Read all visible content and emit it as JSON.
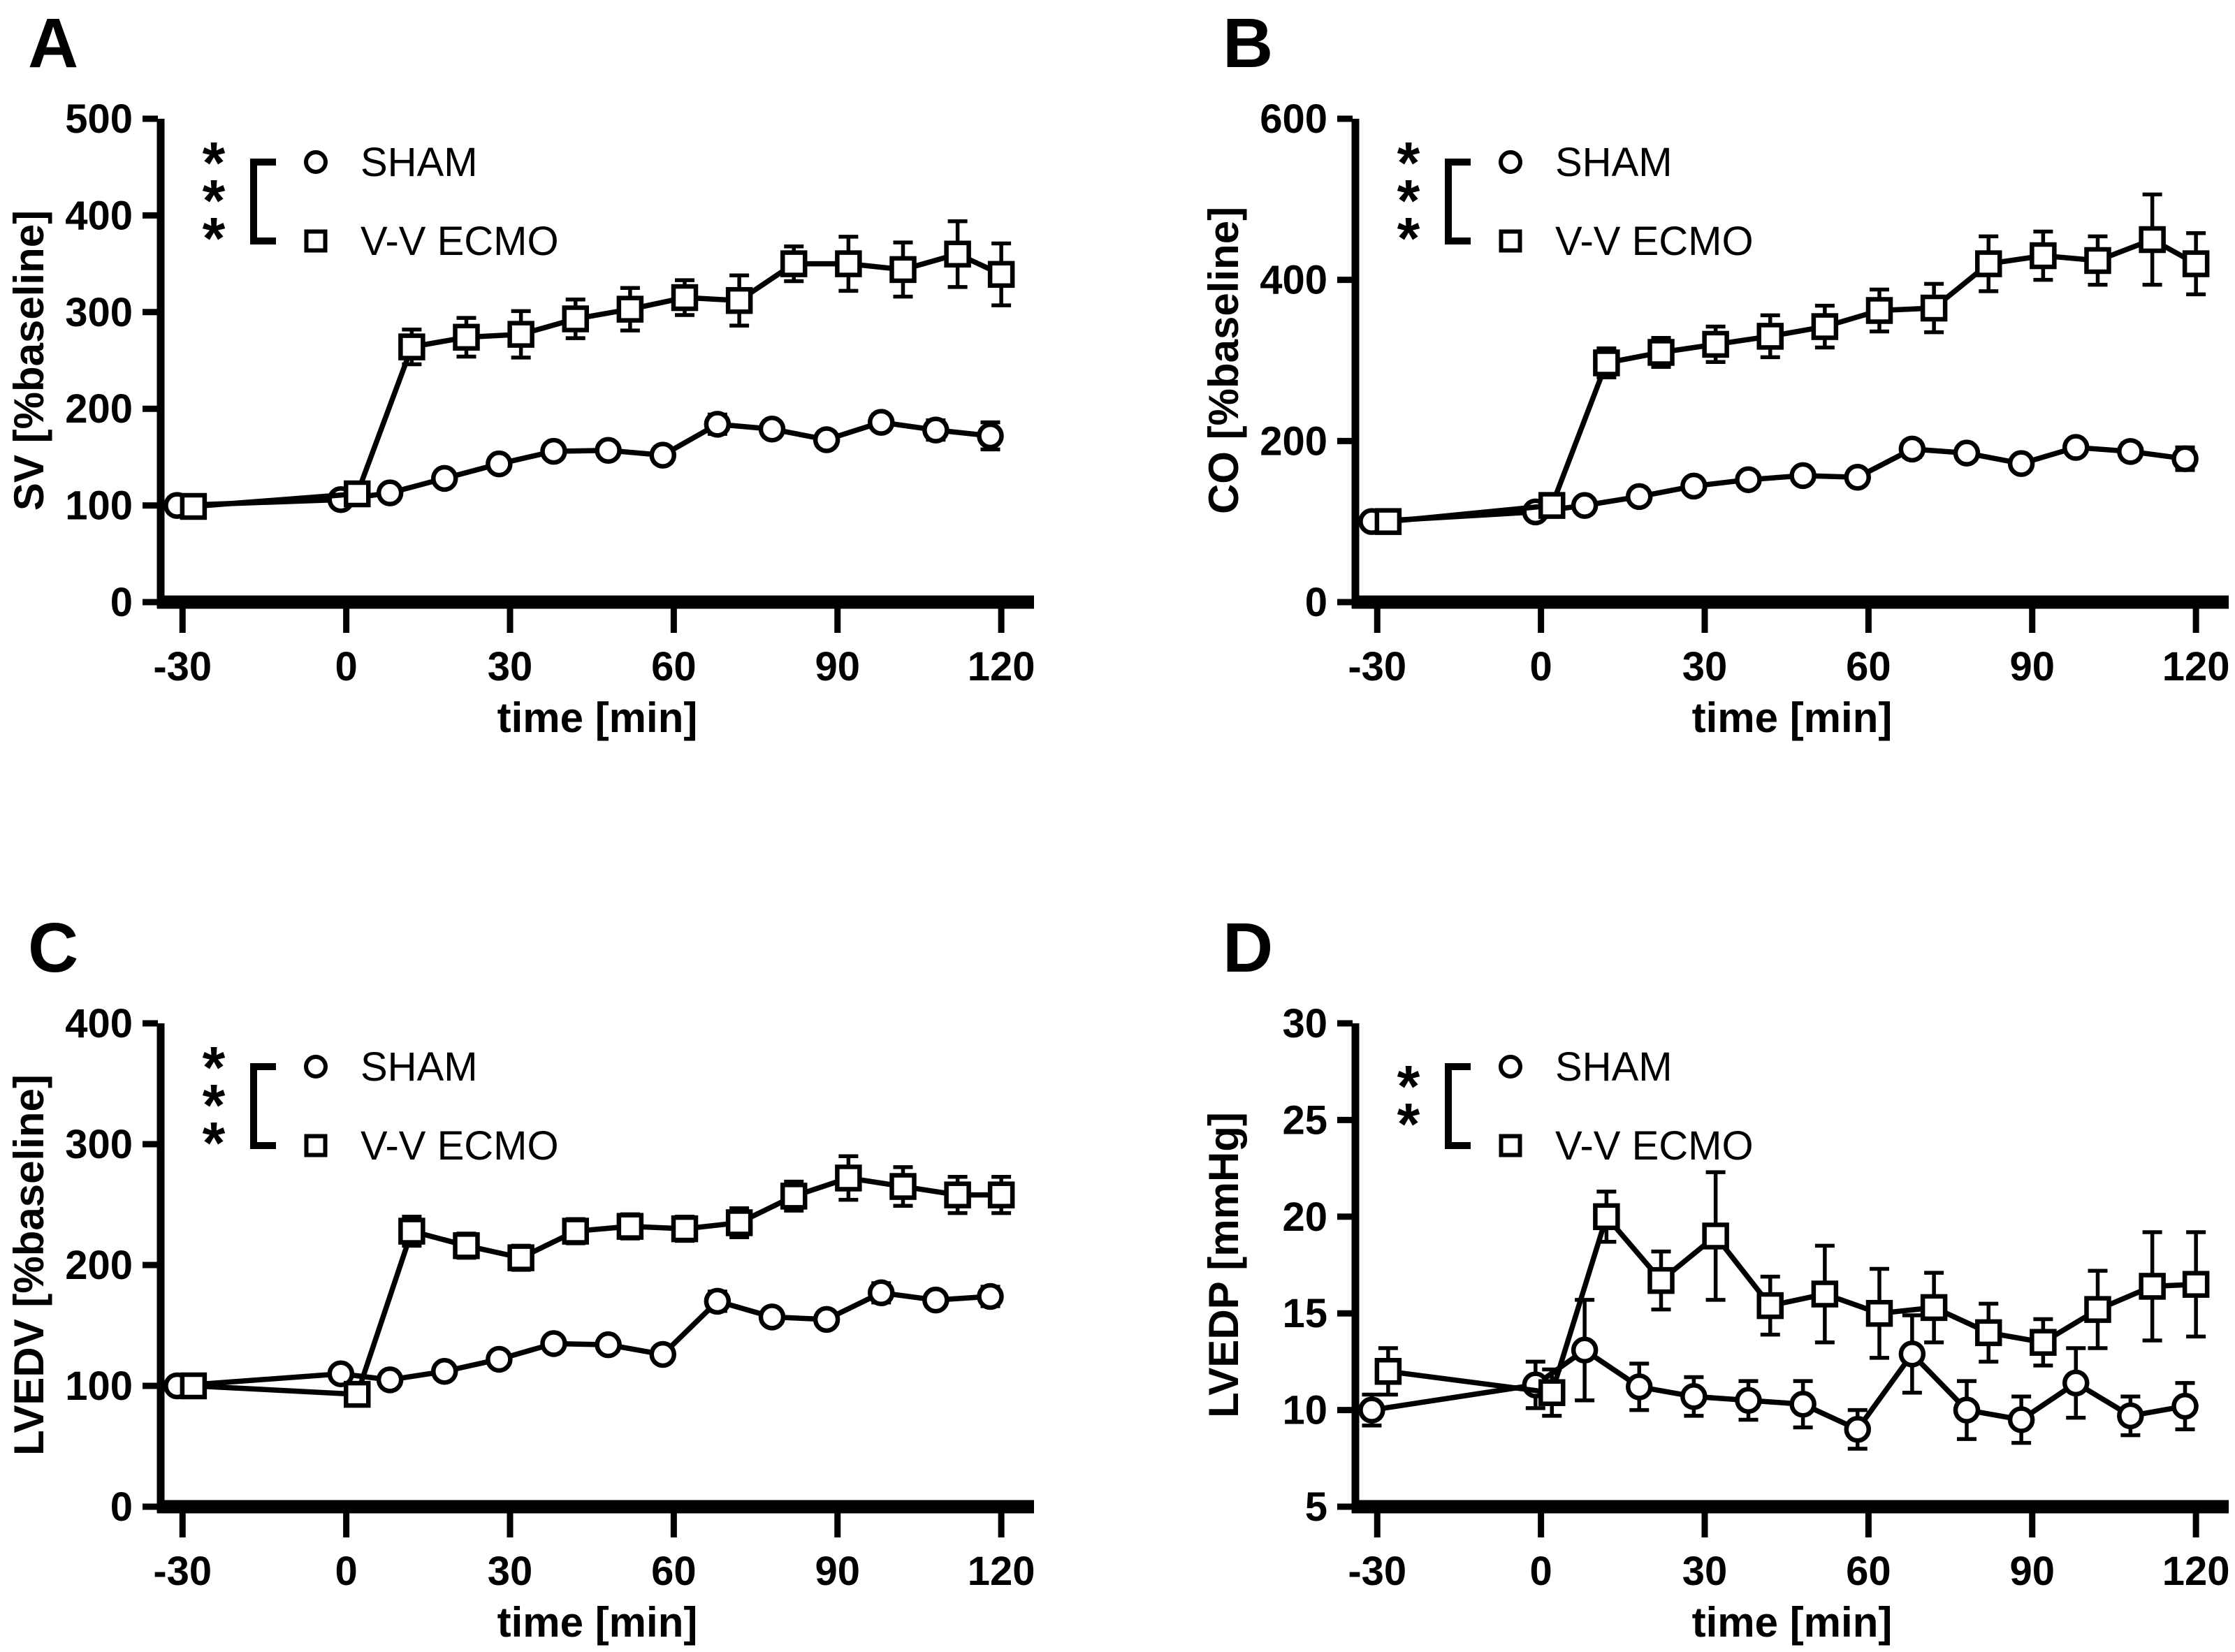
{
  "figure": {
    "background_color": "#ffffff",
    "ink_color": "#000000",
    "panel_letters": [
      "A",
      "B",
      "C",
      "D"
    ]
  },
  "legend": {
    "entries": [
      {
        "label": "SHAM",
        "marker": "circle-icon"
      },
      {
        "label": "V-V ECMO",
        "marker": "square-icon"
      }
    ]
  },
  "chart_data": [
    {
      "letter": "A",
      "type": "line",
      "title": "",
      "ylabel": "SV [%baseline]",
      "xlabel": "time [min]",
      "ylim": [
        0,
        500
      ],
      "yticks": [
        0,
        100,
        200,
        300,
        400,
        500
      ],
      "xticks": [
        -30,
        0,
        30,
        60,
        90,
        120
      ],
      "significance": "***",
      "legend_position": "top-left-inside",
      "grid": false,
      "series": [
        {
          "name": "SHAM",
          "marker": "circle",
          "x": [
            -31,
            -1,
            8,
            18,
            28,
            38,
            48,
            58,
            68,
            78,
            88,
            98,
            108,
            118
          ],
          "y": [
            100,
            106,
            113,
            128,
            143,
            156,
            157,
            152,
            184,
            179,
            168,
            186,
            178,
            172
          ],
          "err": [
            8,
            6,
            6,
            6,
            6,
            7,
            7,
            8,
            10,
            8,
            8,
            8,
            10,
            14
          ]
        },
        {
          "name": "V-V ECMO",
          "marker": "square",
          "x": [
            -28,
            2,
            12,
            22,
            32,
            42,
            52,
            62,
            72,
            82,
            92,
            102,
            112,
            120
          ],
          "y": [
            99,
            112,
            264,
            274,
            277,
            293,
            303,
            315,
            312,
            350,
            350,
            344,
            360,
            339
          ],
          "err": [
            8,
            8,
            18,
            20,
            24,
            20,
            22,
            18,
            26,
            18,
            28,
            28,
            34,
            32
          ]
        }
      ]
    },
    {
      "letter": "B",
      "type": "line",
      "title": "",
      "ylabel": "CO [%baseline]",
      "xlabel": "time [min]",
      "ylim": [
        0,
        600
      ],
      "yticks": [
        0,
        200,
        400,
        600
      ],
      "xticks": [
        -30,
        0,
        30,
        60,
        90,
        120
      ],
      "significance": "***",
      "legend_position": "top-left-inside",
      "grid": false,
      "series": [
        {
          "name": "SHAM",
          "marker": "circle",
          "x": [
            -31,
            -1,
            8,
            18,
            28,
            38,
            48,
            58,
            68,
            78,
            88,
            98,
            108,
            118
          ],
          "y": [
            100,
            112,
            120,
            131,
            144,
            152,
            157,
            155,
            190,
            185,
            172,
            192,
            187,
            178
          ],
          "err": [
            6,
            6,
            6,
            6,
            6,
            6,
            8,
            8,
            10,
            8,
            8,
            8,
            10,
            14
          ]
        },
        {
          "name": "V-V ECMO",
          "marker": "square",
          "x": [
            -28,
            2,
            12,
            22,
            32,
            42,
            52,
            62,
            72,
            82,
            92,
            102,
            112,
            120
          ],
          "y": [
            100,
            120,
            297,
            310,
            320,
            330,
            342,
            362,
            365,
            420,
            430,
            424,
            450,
            420
          ],
          "err": [
            8,
            8,
            18,
            18,
            22,
            26,
            26,
            26,
            30,
            34,
            30,
            30,
            56,
            38
          ]
        }
      ]
    },
    {
      "letter": "C",
      "type": "line",
      "title": "",
      "ylabel": "LVEDV [%baseline]",
      "xlabel": "time [min]",
      "ylim": [
        0,
        400
      ],
      "yticks": [
        0,
        100,
        200,
        300,
        400
      ],
      "xticks": [
        -30,
        0,
        30,
        60,
        90,
        120
      ],
      "significance": "***",
      "legend_position": "top-left-inside",
      "grid": false,
      "series": [
        {
          "name": "SHAM",
          "marker": "circle",
          "x": [
            -31,
            -1,
            8,
            18,
            28,
            38,
            48,
            58,
            68,
            78,
            88,
            98,
            108,
            118
          ],
          "y": [
            100,
            110,
            105,
            112,
            122,
            135,
            134,
            126,
            170,
            157,
            155,
            177,
            171,
            174
          ],
          "err": [
            5,
            4,
            4,
            4,
            4,
            5,
            5,
            5,
            8,
            5,
            5,
            8,
            5,
            8
          ]
        },
        {
          "name": "V-V ECMO",
          "marker": "square",
          "x": [
            -28,
            2,
            12,
            22,
            32,
            42,
            52,
            62,
            72,
            82,
            92,
            102,
            112,
            120
          ],
          "y": [
            100,
            93,
            228,
            216,
            206,
            228,
            232,
            230,
            235,
            257,
            272,
            265,
            258,
            258
          ],
          "err": [
            8,
            8,
            12,
            10,
            10,
            10,
            10,
            10,
            12,
            12,
            18,
            16,
            15,
            15
          ]
        }
      ]
    },
    {
      "letter": "D",
      "type": "line",
      "title": "",
      "ylabel": "LVEDP [mmHg]",
      "xlabel": "time [min]",
      "ylim": [
        5,
        30
      ],
      "yticks": [
        5,
        10,
        15,
        20,
        25,
        30
      ],
      "xticks": [
        -30,
        0,
        30,
        60,
        90,
        120
      ],
      "significance": "**",
      "legend_position": "top-left-inside",
      "grid": false,
      "series": [
        {
          "name": "SHAM",
          "marker": "circle",
          "x": [
            -31,
            -1,
            8,
            18,
            28,
            38,
            48,
            58,
            68,
            78,
            88,
            98,
            108,
            118
          ],
          "y": [
            10,
            11.3,
            13.1,
            11.2,
            10.7,
            10.5,
            10.3,
            9.0,
            12.9,
            10.0,
            9.5,
            11.4,
            9.7,
            10.2
          ],
          "err": [
            0.8,
            1.2,
            2.6,
            1.2,
            1.0,
            1.0,
            1.2,
            1.0,
            2.0,
            1.5,
            1.2,
            1.8,
            1.0,
            1.2
          ]
        },
        {
          "name": "V-V ECMO",
          "marker": "square",
          "x": [
            -28,
            2,
            12,
            22,
            32,
            42,
            52,
            62,
            72,
            82,
            92,
            102,
            112,
            120
          ],
          "y": [
            12,
            10.9,
            20,
            16.7,
            19,
            15.4,
            16,
            15,
            15.3,
            14,
            13.5,
            15.2,
            16.4,
            16.5
          ],
          "err": [
            1.2,
            1.2,
            1.3,
            1.5,
            3.3,
            1.5,
            2.5,
            2.3,
            1.8,
            1.5,
            1.2,
            2.0,
            2.8,
            2.7
          ]
        }
      ]
    }
  ]
}
